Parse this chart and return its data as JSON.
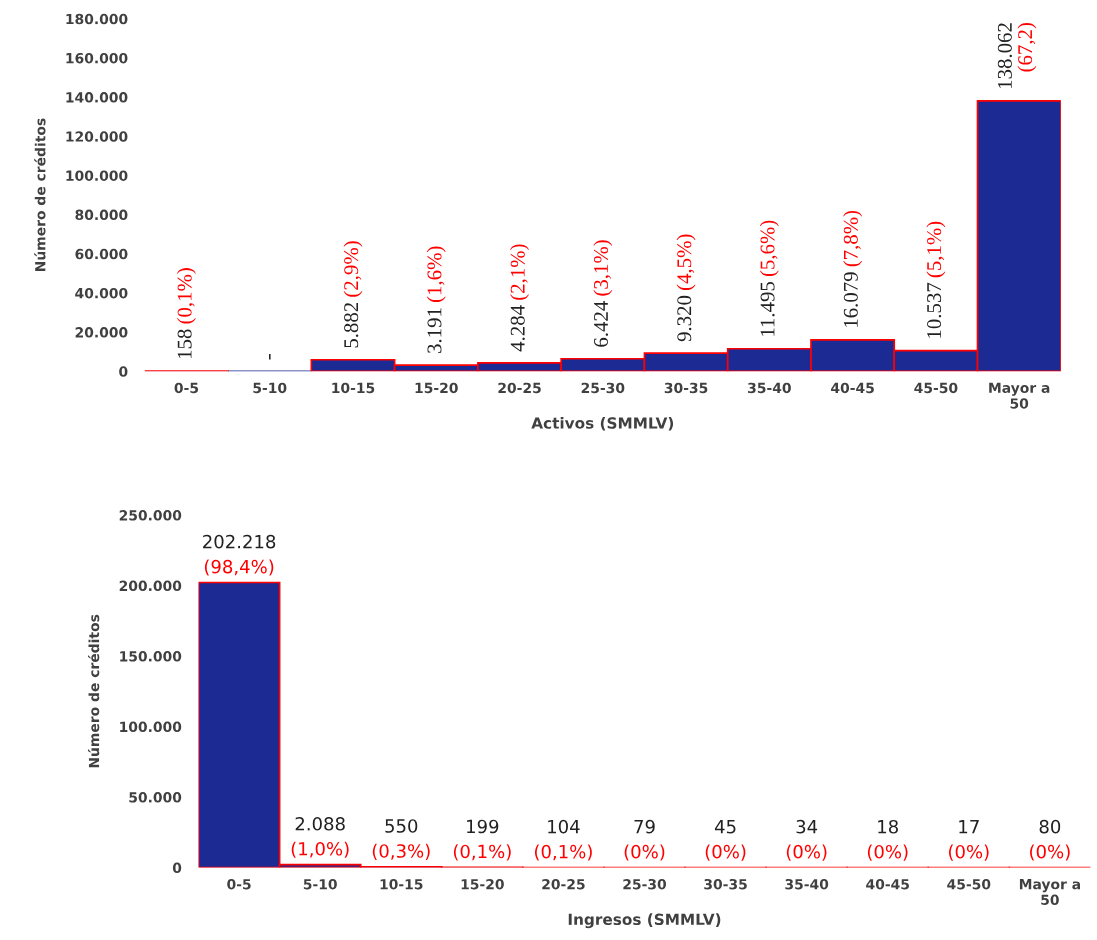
{
  "chart_data": [
    {
      "type": "bar",
      "xlabel": "Activos (SMMLV)",
      "ylabel": "Número de créditos",
      "categories": [
        "0-5",
        "5-10",
        "10-15",
        "15-20",
        "20-25",
        "25-30",
        "30-35",
        "35-40",
        "40-45",
        "45-50",
        "Mayor a\n50"
      ],
      "series": [
        {
          "color": "#1c2a94",
          "values": [
            158,
            0,
            5882,
            3191,
            4284,
            6424,
            9320,
            11495,
            16079,
            10537,
            138062
          ],
          "value_labels": [
            "158 (0,1%)",
            "-",
            "5.882 (2,9%)",
            "3.191 (1,6%)",
            "4.284 (2,1%)",
            "6.424 (3,1%)",
            "9.320 (4,5%)",
            "11.495 (5,6%)",
            "16.079 (7,8%)",
            "10.537 (5,1%)",
            "138.062 (67,2)"
          ]
        }
      ],
      "ylim": [
        0,
        180000
      ],
      "yticks": [
        {
          "value": 0,
          "label": "0"
        },
        {
          "value": 20000,
          "label": "20.000"
        },
        {
          "value": 40000,
          "label": "40.000"
        },
        {
          "value": 60000,
          "label": "60.000"
        },
        {
          "value": 80000,
          "label": "80.000"
        },
        {
          "value": 100000,
          "label": "100.000"
        },
        {
          "value": 120000,
          "label": "120.000"
        },
        {
          "value": 140000,
          "label": "140.000"
        },
        {
          "value": 160000,
          "label": "160.000"
        },
        {
          "value": 180000,
          "label": "180.000"
        }
      ],
      "grid": false,
      "legend": false
    },
    {
      "type": "bar",
      "xlabel": "Ingresos (SMMLV)",
      "ylabel": "Número de créditos",
      "categories": [
        "0-5",
        "5-10",
        "10-15",
        "15-20",
        "20-25",
        "25-30",
        "30-35",
        "35-40",
        "40-45",
        "45-50",
        "Mayor a\n50"
      ],
      "series": [
        {
          "color": "#1c2a94",
          "values": [
            202218,
            2088,
            550,
            199,
            104,
            79,
            45,
            34,
            18,
            17,
            80
          ],
          "value_labels": [
            "202.218\n(98,4%)",
            "2.088\n(1,0%)",
            "550\n(0,3%)",
            "199\n(0,1%)",
            "104\n(0,1%)",
            "79\n(0%)",
            "45\n(0%)",
            "34\n(0%)",
            "18\n(0%)",
            "17\n(0%)",
            "80\n(0%)"
          ]
        }
      ],
      "ylim": [
        0,
        250000
      ],
      "yticks": [
        {
          "value": 0,
          "label": "0"
        },
        {
          "value": 50000,
          "label": "50.000"
        },
        {
          "value": 100000,
          "label": "100.000"
        },
        {
          "value": 150000,
          "label": "150.000"
        },
        {
          "value": 200000,
          "label": "200.000"
        },
        {
          "value": 250000,
          "label": "250.000"
        }
      ],
      "grid": false,
      "legend": false
    }
  ]
}
